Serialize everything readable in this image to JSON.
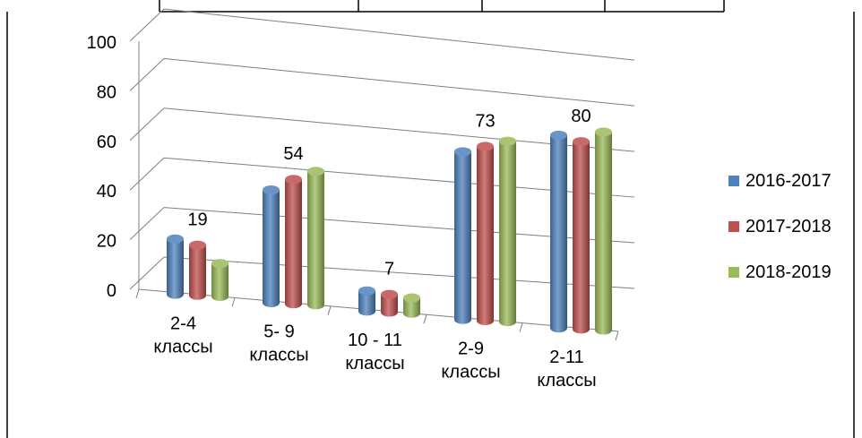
{
  "chart_data": {
    "type": "bar",
    "title": "",
    "xlabel": "",
    "ylabel": "",
    "ylim": [
      0,
      100
    ],
    "yticks": [
      0,
      20,
      40,
      60,
      80,
      100
    ],
    "grid": true,
    "legend_position": "right",
    "categories": [
      [
        "2-4",
        "классы"
      ],
      [
        "5- 9",
        "классы"
      ],
      [
        "10 - 11",
        "классы"
      ],
      [
        "2-9",
        "классы"
      ],
      [
        "2-11",
        "классы"
      ]
    ],
    "series": [
      {
        "name": "2016-2017",
        "color": "#4f81bd",
        "values": [
          21,
          45,
          7,
          70,
          82
        ]
      },
      {
        "name": "2017-2018",
        "color": "#c0504d",
        "values": [
          19,
          50,
          6,
          73,
          80
        ]
      },
      {
        "name": "2018-2019",
        "color": "#9bbb59",
        "values": [
          12,
          54,
          5,
          76,
          85
        ]
      }
    ],
    "data_labels": [
      {
        "category_index": 0,
        "text": "19"
      },
      {
        "category_index": 1,
        "text": "54"
      },
      {
        "category_index": 2,
        "text": "7"
      },
      {
        "category_index": 3,
        "text": "73"
      },
      {
        "category_index": 4,
        "text": "80"
      }
    ]
  }
}
